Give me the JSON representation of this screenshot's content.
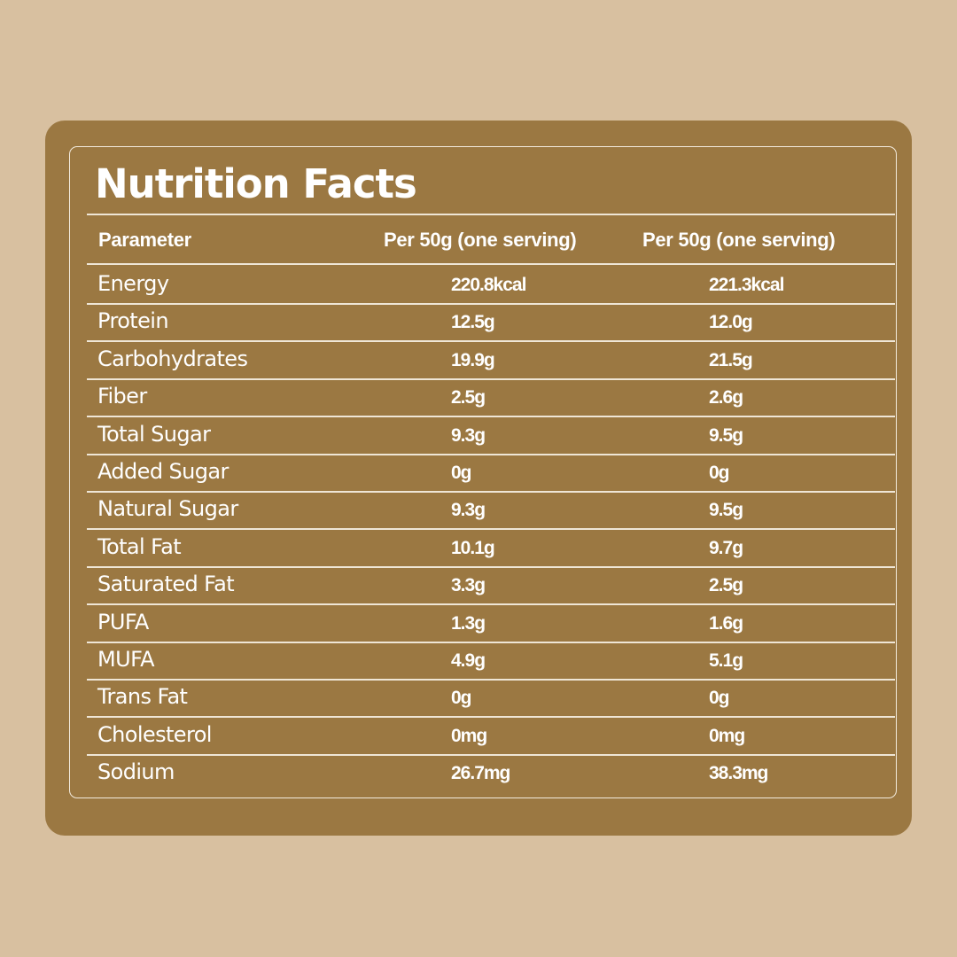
{
  "title": "Nutrition Facts",
  "headers": [
    "Parameter",
    "Per 50g (one serving)",
    "Per 50g (one serving)"
  ],
  "rows": [
    {
      "name": "Energy",
      "a": "220.8kcal",
      "b": "221.3kcal"
    },
    {
      "name": "Protein",
      "a": "12.5g",
      "b": "12.0g"
    },
    {
      "name": "Carbohydrates",
      "a": "19.9g",
      "b": "21.5g"
    },
    {
      "name": "Fiber",
      "a": "2.5g",
      "b": "2.6g"
    },
    {
      "name": "Total Sugar",
      "a": "9.3g",
      "b": "9.5g"
    },
    {
      "name": "Added Sugar",
      "a": "0g",
      "b": "0g"
    },
    {
      "name": "Natural Sugar",
      "a": "9.3g",
      "b": "9.5g"
    },
    {
      "name": "Total Fat",
      "a": "10.1g",
      "b": "9.7g"
    },
    {
      "name": "Saturated Fat",
      "a": "3.3g",
      "b": "2.5g"
    },
    {
      "name": "PUFA",
      "a": "1.3g",
      "b": "1.6g"
    },
    {
      "name": "MUFA",
      "a": "4.9g",
      "b": "5.1g"
    },
    {
      "name": "Trans Fat",
      "a": "0g",
      "b": "0g"
    },
    {
      "name": "Cholesterol",
      "a": "0mg",
      "b": "0mg"
    },
    {
      "name": "Sodium",
      "a": "26.7mg",
      "b": "38.3mg"
    }
  ],
  "colors": {
    "background": "#D8C0A0",
    "panel": "#9B7842",
    "text": "#FFFFFF"
  }
}
